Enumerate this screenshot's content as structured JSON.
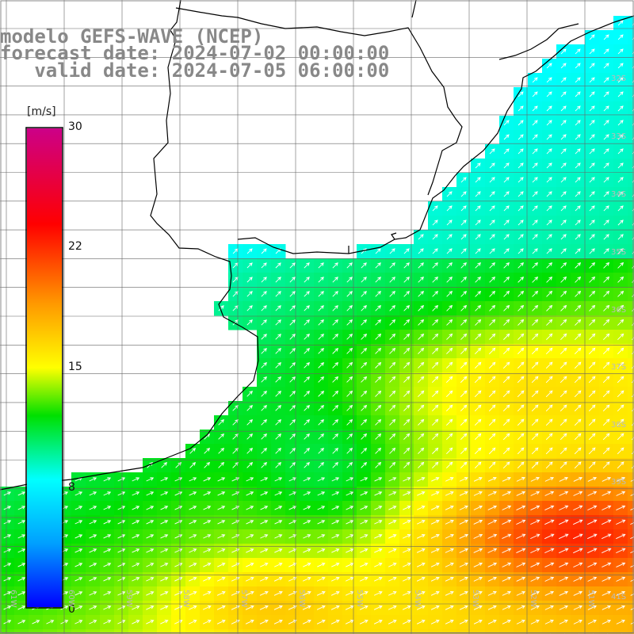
{
  "header": {
    "line1": "modelo GEFS-WAVE (NCEP)",
    "line2": "forecast date: 2024-07-02 00:00:00",
    "line3": "   valid date: 2024-07-05 06:00:00"
  },
  "colorbar": {
    "unit": "[m/s]",
    "min": 0,
    "max": 30,
    "tick_labels": [
      "30",
      "22",
      "15",
      "8",
      "0"
    ],
    "tick_values": [
      30,
      22,
      15,
      8,
      0
    ],
    "colors": [
      "#0000ff",
      "#00a0ff",
      "#00ffff",
      "#00e000",
      "#ffff00",
      "#ff9900",
      "#ff0000",
      "#cc0088"
    ],
    "color_stops": [
      0,
      4,
      8,
      12,
      15,
      19,
      24,
      30
    ]
  },
  "grid": {
    "lon_labels": [
      "61W",
      "60W",
      "59W",
      "58W",
      "57W",
      "56W",
      "55W",
      "54W",
      "53W",
      "52W",
      "51W"
    ],
    "lat_labels": [
      "32S",
      "33S",
      "34S",
      "35S",
      "36S",
      "37S",
      "38S",
      "39S",
      "41S"
    ],
    "extent": {
      "lon_min": -61.1,
      "lon_max": -50.2,
      "lat_min": -41.4,
      "lat_max": -30.4
    }
  },
  "colors": {
    "coastline": "#000000",
    "gridline": "#666666",
    "arrow": "#ffffff",
    "title": "#888888"
  }
}
